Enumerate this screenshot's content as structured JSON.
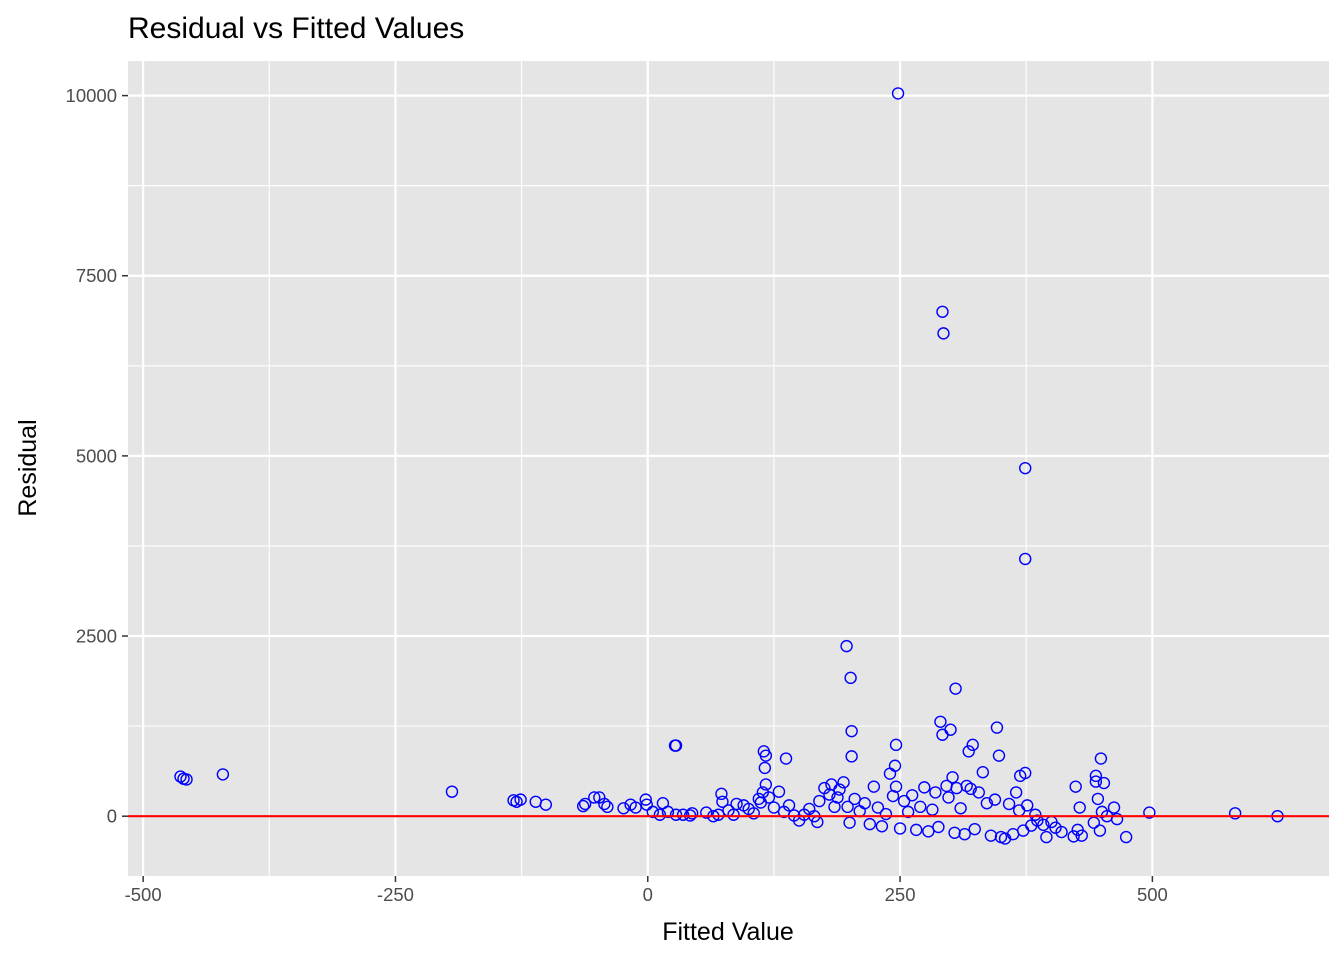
{
  "chart_data": {
    "type": "scatter",
    "title": "Residual vs Fitted Values",
    "xlabel": "Fitted Value",
    "ylabel": "Residual",
    "xlim": [
      -515,
      675
    ],
    "ylim": [
      -830,
      10480
    ],
    "x_ticks": [
      -500,
      -250,
      0,
      250,
      500
    ],
    "x_tick_labels": [
      "-500",
      "-250",
      "0",
      "250",
      "500"
    ],
    "y_ticks": [
      0,
      2500,
      5000,
      7500,
      10000
    ],
    "y_tick_labels": [
      "0",
      "2500",
      "5000",
      "7500",
      "10000"
    ],
    "grid": true,
    "legend": "none",
    "reference_line": {
      "y": 0,
      "color": "#ff0000"
    },
    "colors": {
      "panel_bg": "#e5e5e5",
      "grid": "#ffffff",
      "points": "#0000ff",
      "ref_line": "#ff0000"
    },
    "points": [
      [
        248,
        10030
      ],
      [
        292,
        7000
      ],
      [
        293,
        6700
      ],
      [
        374,
        4830
      ],
      [
        374,
        3570
      ],
      [
        197,
        2360
      ],
      [
        201,
        1920
      ],
      [
        305,
        1770
      ],
      [
        202,
        1180
      ],
      [
        290,
        1310
      ],
      [
        292,
        1130
      ],
      [
        300,
        1200
      ],
      [
        346,
        1230
      ],
      [
        322,
        990
      ],
      [
        246,
        990
      ],
      [
        27,
        980
      ],
      [
        28,
        980
      ],
      [
        318,
        900
      ],
      [
        115,
        900
      ],
      [
        117,
        840
      ],
      [
        137,
        800
      ],
      [
        202,
        830
      ],
      [
        348,
        840
      ],
      [
        449,
        800
      ],
      [
        116,
        670
      ],
      [
        245,
        700
      ],
      [
        369,
        560
      ],
      [
        374,
        600
      ],
      [
        444,
        560
      ],
      [
        -463,
        550
      ],
      [
        -460,
        520
      ],
      [
        -457,
        510
      ],
      [
        -421,
        580
      ],
      [
        -194,
        340
      ],
      [
        -133,
        220
      ],
      [
        -130,
        200
      ],
      [
        -126,
        230
      ],
      [
        -111,
        200
      ],
      [
        -101,
        160
      ],
      [
        -64,
        140
      ],
      [
        -62,
        170
      ],
      [
        -53,
        260
      ],
      [
        -48,
        260
      ],
      [
        -43,
        170
      ],
      [
        -40,
        130
      ],
      [
        -24,
        110
      ],
      [
        -17,
        160
      ],
      [
        -12,
        120
      ],
      [
        -2,
        230
      ],
      [
        -1,
        160
      ],
      [
        5,
        60
      ],
      [
        12,
        20
      ],
      [
        15,
        180
      ],
      [
        20,
        60
      ],
      [
        28,
        20
      ],
      [
        35,
        20
      ],
      [
        42,
        10
      ],
      [
        44,
        40
      ],
      [
        58,
        50
      ],
      [
        65,
        0
      ],
      [
        70,
        20
      ],
      [
        73,
        310
      ],
      [
        74,
        200
      ],
      [
        80,
        80
      ],
      [
        85,
        20
      ],
      [
        88,
        170
      ],
      [
        95,
        150
      ],
      [
        100,
        100
      ],
      [
        105,
        40
      ],
      [
        110,
        240
      ],
      [
        112,
        190
      ],
      [
        114,
        330
      ],
      [
        117,
        440
      ],
      [
        120,
        260
      ],
      [
        125,
        120
      ],
      [
        130,
        340
      ],
      [
        135,
        60
      ],
      [
        140,
        150
      ],
      [
        145,
        10
      ],
      [
        150,
        -60
      ],
      [
        155,
        20
      ],
      [
        160,
        100
      ],
      [
        165,
        0
      ],
      [
        168,
        -80
      ],
      [
        170,
        210
      ],
      [
        175,
        390
      ],
      [
        180,
        300
      ],
      [
        182,
        440
      ],
      [
        185,
        130
      ],
      [
        188,
        260
      ],
      [
        190,
        370
      ],
      [
        194,
        470
      ],
      [
        198,
        130
      ],
      [
        200,
        -90
      ],
      [
        205,
        240
      ],
      [
        210,
        70
      ],
      [
        215,
        180
      ],
      [
        220,
        -110
      ],
      [
        224,
        410
      ],
      [
        228,
        120
      ],
      [
        232,
        -140
      ],
      [
        236,
        30
      ],
      [
        240,
        590
      ],
      [
        243,
        280
      ],
      [
        246,
        410
      ],
      [
        250,
        -170
      ],
      [
        254,
        210
      ],
      [
        258,
        60
      ],
      [
        262,
        290
      ],
      [
        266,
        -190
      ],
      [
        270,
        130
      ],
      [
        274,
        400
      ],
      [
        278,
        -210
      ],
      [
        282,
        90
      ],
      [
        285,
        330
      ],
      [
        288,
        -150
      ],
      [
        296,
        420
      ],
      [
        298,
        260
      ],
      [
        302,
        540
      ],
      [
        304,
        -230
      ],
      [
        306,
        390
      ],
      [
        310,
        110
      ],
      [
        314,
        -250
      ],
      [
        316,
        420
      ],
      [
        320,
        380
      ],
      [
        324,
        -180
      ],
      [
        328,
        330
      ],
      [
        332,
        610
      ],
      [
        336,
        180
      ],
      [
        340,
        -270
      ],
      [
        344,
        230
      ],
      [
        350,
        -290
      ],
      [
        354,
        -310
      ],
      [
        358,
        170
      ],
      [
        362,
        -250
      ],
      [
        365,
        330
      ],
      [
        368,
        80
      ],
      [
        372,
        -200
      ],
      [
        376,
        150
      ],
      [
        380,
        -130
      ],
      [
        384,
        20
      ],
      [
        386,
        -60
      ],
      [
        392,
        -120
      ],
      [
        395,
        -290
      ],
      [
        400,
        -80
      ],
      [
        404,
        -160
      ],
      [
        410,
        -220
      ],
      [
        422,
        -280
      ],
      [
        424,
        410
      ],
      [
        426,
        -190
      ],
      [
        428,
        120
      ],
      [
        430,
        -270
      ],
      [
        442,
        -90
      ],
      [
        444,
        480
      ],
      [
        446,
        240
      ],
      [
        448,
        -200
      ],
      [
        450,
        60
      ],
      [
        452,
        460
      ],
      [
        455,
        0
      ],
      [
        462,
        120
      ],
      [
        465,
        -40
      ],
      [
        474,
        -290
      ],
      [
        497,
        50
      ],
      [
        582,
        40
      ],
      [
        624,
        0
      ]
    ]
  }
}
